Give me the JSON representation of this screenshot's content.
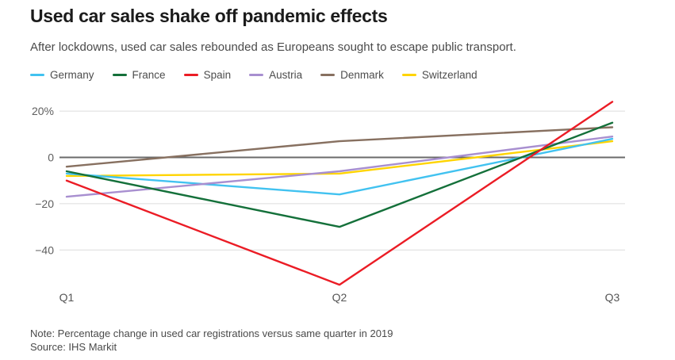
{
  "header": {
    "title": "Used car sales shake off pandemic effects",
    "subtitle": "After lockdowns, used car sales rebounded as Europeans sought to escape public transport."
  },
  "legend": [
    {
      "label": "Germany",
      "color": "#41C2F0"
    },
    {
      "label": "France",
      "color": "#14703A"
    },
    {
      "label": "Spain",
      "color": "#EB1C25"
    },
    {
      "label": "Austria",
      "color": "#A88FD0"
    },
    {
      "label": "Denmark",
      "color": "#877060"
    },
    {
      "label": "Switzerland",
      "color": "#FFD400"
    }
  ],
  "chart_data": {
    "type": "line",
    "categories": [
      "Q1",
      "Q2",
      "Q3"
    ],
    "series": [
      {
        "name": "Germany",
        "color": "#41C2F0",
        "values": [
          -7,
          -16,
          8
        ]
      },
      {
        "name": "France",
        "color": "#14703A",
        "values": [
          -6,
          -30,
          15
        ]
      },
      {
        "name": "Spain",
        "color": "#EB1C25",
        "values": [
          -10,
          -55,
          24
        ]
      },
      {
        "name": "Austria",
        "color": "#A88FD0",
        "values": [
          -17,
          -6,
          9
        ]
      },
      {
        "name": "Denmark",
        "color": "#877060",
        "values": [
          -4,
          7,
          13
        ]
      },
      {
        "name": "Switzerland",
        "color": "#FFD400",
        "values": [
          -8,
          -7,
          7
        ]
      }
    ],
    "y_ticks": [
      {
        "value": 20,
        "label": "20%"
      },
      {
        "value": 0,
        "label": "0"
      },
      {
        "value": -20,
        "label": "−20"
      },
      {
        "value": -40,
        "label": "−40"
      }
    ],
    "ylim": [
      -58,
      28
    ],
    "xlabel": "",
    "ylabel": "",
    "grid": true,
    "legend_position": "top",
    "draw_order": [
      "Switzerland",
      "Germany",
      "Austria",
      "Denmark",
      "France",
      "Spain"
    ],
    "grid_color": "#DCDCDC",
    "zero_line_color": "#6B6B6B"
  },
  "footer": {
    "note": "Note: Percentage change in used car registrations versus same quarter in 2019",
    "source": "Source: IHS Markit"
  }
}
